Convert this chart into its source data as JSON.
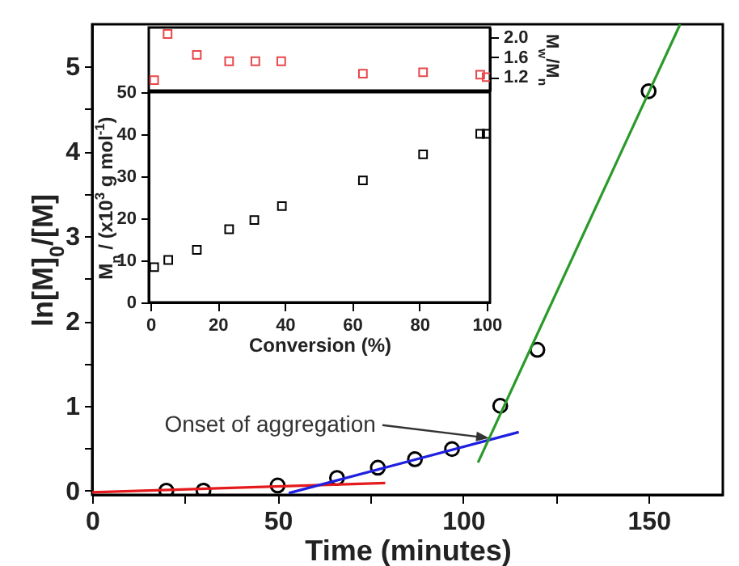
{
  "chart_data": [
    {
      "type": "scatter",
      "xlabel": "Time (minutes)",
      "ylabel": "ln[M]$_{0}$/[M]",
      "xlim": [
        0,
        170
      ],
      "ylim": [
        -0.05,
        5.5
      ],
      "xticks": [
        0,
        {
          "value": 25,
          "label": null
        },
        50,
        {
          "value": 75,
          "label": null
        },
        100,
        {
          "value": 125,
          "label": null
        },
        150
      ],
      "yticks": [
        0,
        {
          "value": 0.5,
          "label": null
        },
        1,
        {
          "value": 1.5,
          "label": null
        },
        2,
        {
          "value": 2.5,
          "label": null
        },
        3,
        {
          "value": 3.5,
          "label": null
        },
        4,
        {
          "value": 4.5,
          "label": null
        },
        5
      ],
      "series": [
        {
          "marker": "circle",
          "color": "#000000",
          "x": [
            20,
            30,
            50,
            66,
            77,
            87,
            97,
            110,
            120,
            150
          ],
          "values": [
            0.0,
            0.0,
            0.06,
            0.15,
            0.27,
            0.37,
            0.49,
            1.0,
            1.66,
            4.71
          ]
        },
        {
          "type": "line",
          "color": "#e41a1c",
          "x": [
            0,
            79
          ],
          "values": [
            -0.02,
            0.09
          ]
        },
        {
          "type": "line",
          "color": "#1f1fe0",
          "x": [
            53,
            115
          ],
          "values": [
            -0.03,
            0.69
          ]
        },
        {
          "type": "line",
          "color": "#2a9a2a",
          "x": [
            104,
            158.5
          ],
          "values": [
            0.33,
            5.5
          ]
        }
      ],
      "annotations": [
        {
          "text": "Onset of aggregation",
          "x": 107,
          "y": 0.62
        }
      ]
    },
    {
      "type": "scatter",
      "y2label": "M$_{w}$/M$_{n}$",
      "xlim": [
        -0.5,
        101
      ],
      "y2lim": [
        0.93,
        2.2
      ],
      "y2ticks": [
        1.2,
        1.6,
        {
          "value": 2,
          "label": "2.0"
        }
      ],
      "tick_labels": "y2",
      "marker": "square",
      "series": [
        {
          "axis": "y2",
          "color": "#e8464a",
          "x": [
            1.1,
            5.1,
            13.8,
            23.4,
            31.2,
            38.9,
            63.2,
            81.1,
            98.1,
            100
          ],
          "values": [
            1.14,
            2.07,
            1.65,
            1.52,
            1.52,
            1.52,
            1.27,
            1.3,
            1.25,
            1.2
          ]
        }
      ]
    },
    {
      "type": "scatter",
      "xlabel": "Conversion (%)",
      "ylabel": "M$_{n}$ / (x10$^{3}$ g mol$^{-1}$)",
      "xlim": [
        -0.5,
        101
      ],
      "ylim": [
        0,
        50
      ],
      "xticks": [
        0,
        20,
        40,
        60,
        80,
        100
      ],
      "yticks": [
        0,
        10,
        20,
        30,
        40,
        50
      ],
      "marker": "square",
      "series": [
        {
          "color": "#000000",
          "x": [
            1.1,
            5.3,
            13.8,
            23.4,
            30.9,
            39.1,
            63.2,
            81.1,
            98.1,
            100
          ],
          "values": [
            8.4,
            10.1,
            12.5,
            17.4,
            19.6,
            22.9,
            29.0,
            35.2,
            40.1,
            40.1
          ]
        }
      ]
    }
  ]
}
